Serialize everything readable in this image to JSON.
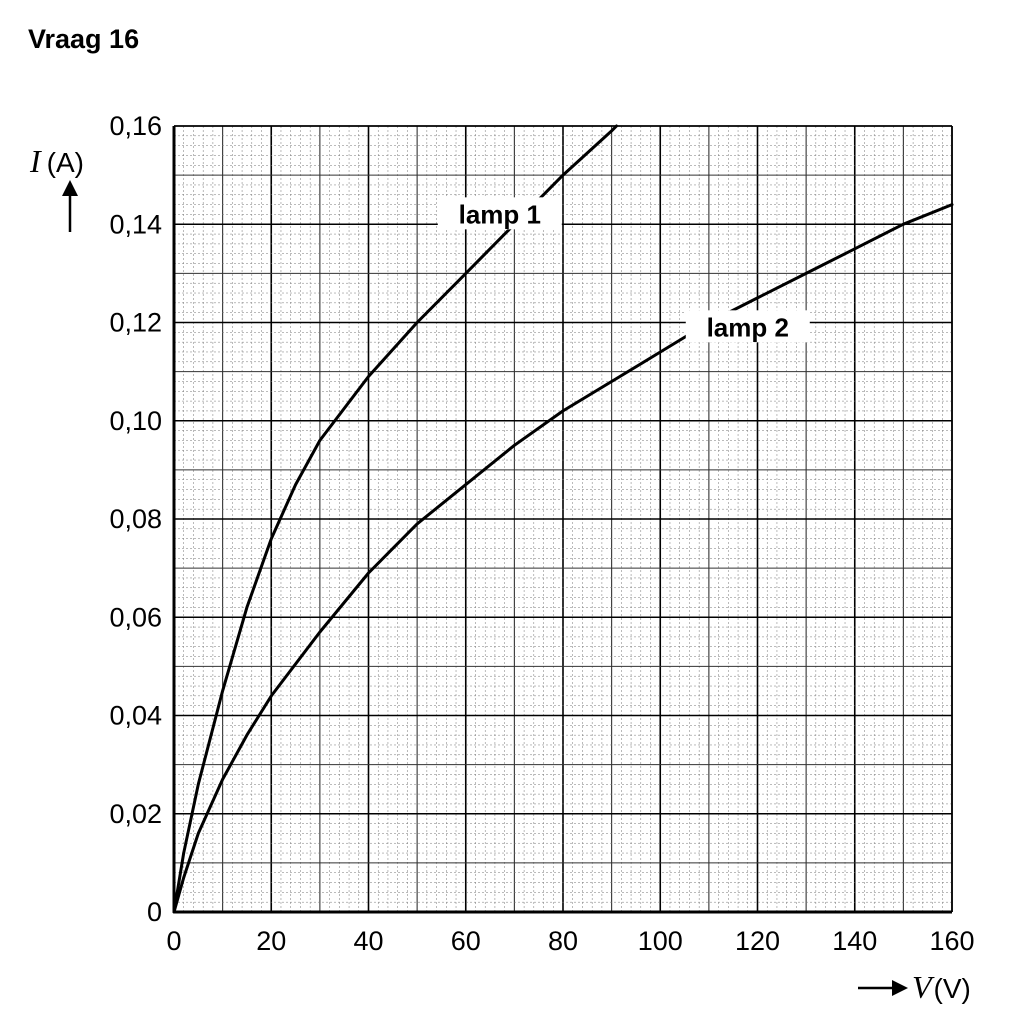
{
  "heading": "Vraag 16",
  "chart_data": {
    "type": "line",
    "title": "",
    "xlabel": {
      "symbol": "V",
      "unit": "(V)"
    },
    "ylabel": {
      "symbol": "I",
      "unit": "(A)"
    },
    "xlim": [
      0,
      160
    ],
    "ylim": [
      0,
      0.16
    ],
    "grid": true,
    "x_ticks": [
      0,
      20,
      40,
      60,
      80,
      100,
      120,
      140,
      160
    ],
    "x_tick_labels": [
      "0",
      "20",
      "40",
      "60",
      "80",
      "100",
      "120",
      "140",
      "160"
    ],
    "y_ticks": [
      0,
      0.02,
      0.04,
      0.06,
      0.08,
      0.1,
      0.12,
      0.14,
      0.16
    ],
    "y_tick_labels": [
      "0",
      "0,02",
      "0,04",
      "0,06",
      "0,08",
      "0,10",
      "0,12",
      "0,14",
      "0,16"
    ],
    "series": [
      {
        "name": "lamp 1",
        "x": [
          0,
          2,
          5,
          10,
          15,
          20,
          25,
          30,
          40,
          50,
          60,
          70,
          80,
          90,
          91
        ],
        "y": [
          0,
          0.012,
          0.026,
          0.045,
          0.062,
          0.076,
          0.087,
          0.096,
          0.109,
          0.12,
          0.13,
          0.14,
          0.15,
          0.159,
          0.16
        ]
      },
      {
        "name": "lamp 2",
        "x": [
          0,
          2,
          5,
          10,
          15,
          20,
          30,
          40,
          50,
          60,
          70,
          80,
          90,
          100,
          110,
          120,
          130,
          140,
          150,
          160
        ],
        "y": [
          0,
          0.007,
          0.016,
          0.027,
          0.036,
          0.044,
          0.057,
          0.069,
          0.079,
          0.087,
          0.095,
          0.102,
          0.108,
          0.114,
          0.12,
          0.125,
          0.13,
          0.135,
          0.14,
          0.144
        ]
      }
    ],
    "annotations": [
      {
        "text": "lamp 1",
        "x": 67,
        "y": 0.141
      },
      {
        "text": "lamp 2",
        "x": 118,
        "y": 0.118
      }
    ]
  }
}
